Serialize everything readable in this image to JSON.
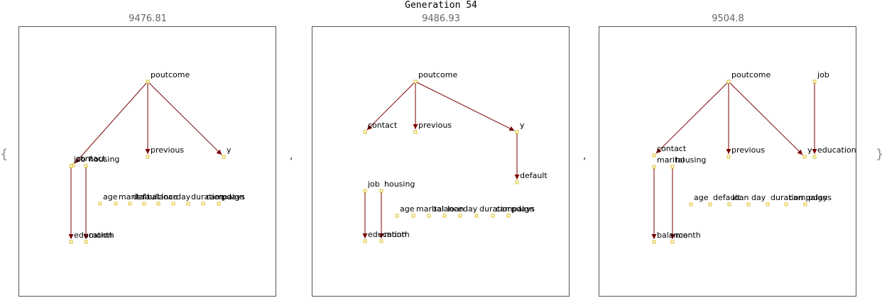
{
  "title": "Generation 54",
  "delimiters": {
    "open": "{",
    "close": "}",
    "separator": ","
  },
  "graphs": [
    {
      "score": "9476.81",
      "nodes": [
        {
          "id": "poutcome",
          "label": "poutcome"
        },
        {
          "id": "contact",
          "label": "contact"
        },
        {
          "id": "previous",
          "label": "previous"
        },
        {
          "id": "y",
          "label": "y"
        },
        {
          "id": "job",
          "label": "job"
        },
        {
          "id": "housing",
          "label": "housing"
        },
        {
          "id": "age",
          "label": "age"
        },
        {
          "id": "marital",
          "label": "marital"
        },
        {
          "id": "default",
          "label": "default"
        },
        {
          "id": "balance",
          "label": "balance"
        },
        {
          "id": "loan",
          "label": "loan"
        },
        {
          "id": "day",
          "label": "day"
        },
        {
          "id": "duration",
          "label": "duration"
        },
        {
          "id": "campaign",
          "label": "campaign"
        },
        {
          "id": "pdays",
          "label": "pdays"
        },
        {
          "id": "education",
          "label": "education"
        },
        {
          "id": "month",
          "label": "month"
        }
      ],
      "edges": [
        {
          "from": "poutcome",
          "to": "contact"
        },
        {
          "from": "poutcome",
          "to": "previous"
        },
        {
          "from": "poutcome",
          "to": "y"
        },
        {
          "from": "job",
          "to": "education"
        },
        {
          "from": "housing",
          "to": "month"
        }
      ]
    },
    {
      "score": "9486.93",
      "nodes": [
        {
          "id": "poutcome",
          "label": "poutcome"
        },
        {
          "id": "contact",
          "label": "contact"
        },
        {
          "id": "previous",
          "label": "previous"
        },
        {
          "id": "y",
          "label": "y"
        },
        {
          "id": "default",
          "label": "default"
        },
        {
          "id": "job",
          "label": "job"
        },
        {
          "id": "housing",
          "label": "housing"
        },
        {
          "id": "age",
          "label": "age"
        },
        {
          "id": "marital",
          "label": "marital"
        },
        {
          "id": "balance",
          "label": "balance"
        },
        {
          "id": "loan",
          "label": "loan"
        },
        {
          "id": "day",
          "label": "day"
        },
        {
          "id": "duration",
          "label": "duration"
        },
        {
          "id": "campaign",
          "label": "campaign"
        },
        {
          "id": "pdays",
          "label": "pdays"
        },
        {
          "id": "education",
          "label": "education"
        },
        {
          "id": "month",
          "label": "month"
        }
      ],
      "edges": [
        {
          "from": "poutcome",
          "to": "contact"
        },
        {
          "from": "poutcome",
          "to": "previous"
        },
        {
          "from": "poutcome",
          "to": "y"
        },
        {
          "from": "y",
          "to": "default"
        },
        {
          "from": "job",
          "to": "education"
        },
        {
          "from": "housing",
          "to": "month"
        }
      ]
    },
    {
      "score": "9504.8",
      "nodes": [
        {
          "id": "poutcome",
          "label": "poutcome"
        },
        {
          "id": "job",
          "label": "job"
        },
        {
          "id": "contact",
          "label": "contact"
        },
        {
          "id": "previous",
          "label": "previous"
        },
        {
          "id": "y",
          "label": "y"
        },
        {
          "id": "education",
          "label": "education"
        },
        {
          "id": "marital",
          "label": "marital"
        },
        {
          "id": "housing",
          "label": "housing"
        },
        {
          "id": "age",
          "label": "age"
        },
        {
          "id": "default",
          "label": "default"
        },
        {
          "id": "loan",
          "label": "loan"
        },
        {
          "id": "day",
          "label": "day"
        },
        {
          "id": "duration",
          "label": "duration"
        },
        {
          "id": "campaign",
          "label": "campaign"
        },
        {
          "id": "pdays",
          "label": "pdays"
        },
        {
          "id": "balance",
          "label": "balance"
        },
        {
          "id": "month",
          "label": "month"
        }
      ],
      "edges": [
        {
          "from": "poutcome",
          "to": "contact"
        },
        {
          "from": "poutcome",
          "to": "previous"
        },
        {
          "from": "poutcome",
          "to": "y"
        },
        {
          "from": "job",
          "to": "education"
        },
        {
          "from": "marital",
          "to": "balance"
        },
        {
          "from": "housing",
          "to": "month"
        }
      ]
    }
  ],
  "colors": {
    "edge": "#7a0000",
    "node_fill": "#ffffe8",
    "node_stroke": "#d4b000",
    "border": "#555555"
  }
}
